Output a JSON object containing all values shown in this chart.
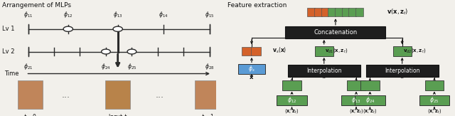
{
  "title_left": "Arrangement of MLPs",
  "title_right": "Feature extraction",
  "bg_color": "#f2f0eb",
  "line_color": "#2a2a2a",
  "lv1_label": "Lv 1",
  "lv2_label": "Lv 2",
  "time_label": "Time",
  "box_color_orange": "#d4622a",
  "box_color_green": "#5a9e52",
  "box_color_blue": "#5b9bd5",
  "box_color_dark": "#1e1e1e",
  "concat_label": "Concatenation",
  "interp_label": "Interpolation"
}
